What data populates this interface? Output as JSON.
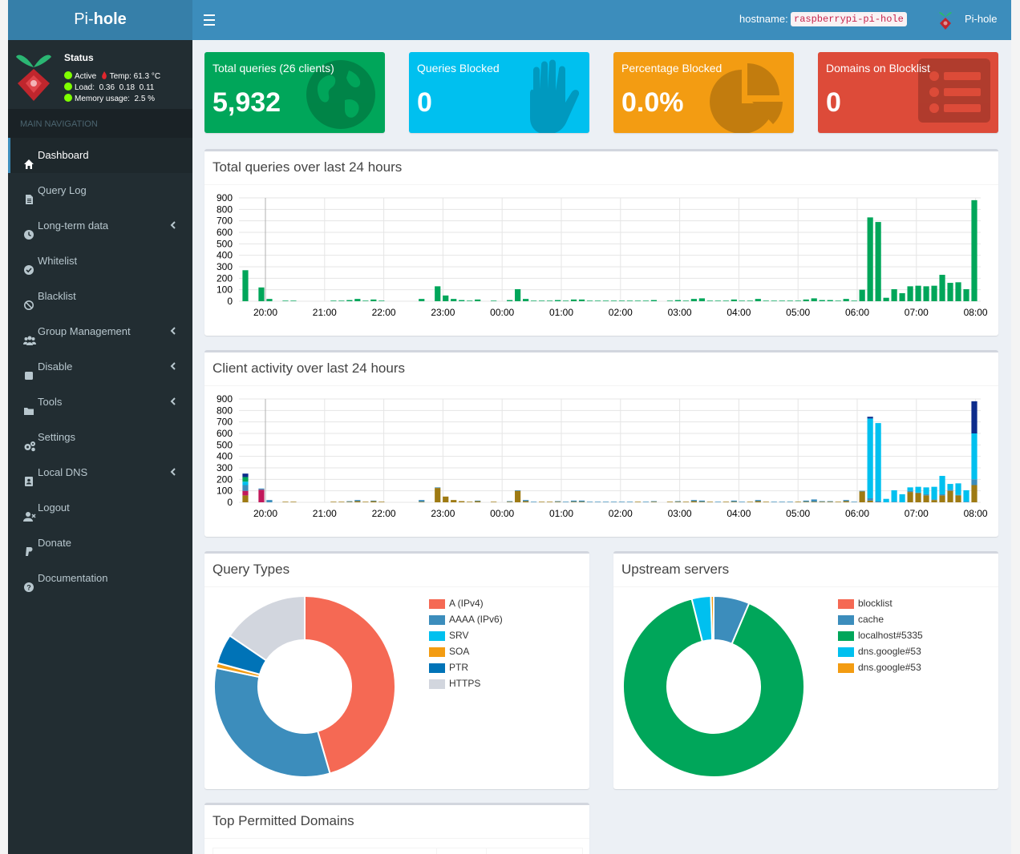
{
  "app": {
    "brand_light": "Pi-",
    "brand_bold": "hole",
    "menu_icon": "hamburger-icon"
  },
  "topbar": {
    "hostname_label": "hostname:",
    "hostname": "raspberrypi-pi-hole",
    "user": "Pi-hole"
  },
  "status": {
    "title": "Status",
    "active": "Active",
    "temp": "Temp: 61.3 °C",
    "load": "Load:  0.36  0.18  0.11",
    "memory": "Memory usage:  2.5 %"
  },
  "nav": {
    "header": "MAIN NAVIGATION",
    "items": [
      {
        "label": "Dashboard",
        "icon": "home-icon",
        "active": true,
        "chevron": false
      },
      {
        "label": "Query Log",
        "icon": "file-icon",
        "active": false,
        "chevron": false
      },
      {
        "label": "Long-term data",
        "icon": "clock-icon",
        "active": false,
        "chevron": true
      },
      {
        "label": "Whitelist",
        "icon": "check-circle-icon",
        "active": false,
        "chevron": false
      },
      {
        "label": "Blacklist",
        "icon": "ban-icon",
        "active": false,
        "chevron": false
      },
      {
        "label": "Group Management",
        "icon": "users-icon",
        "active": false,
        "chevron": true
      },
      {
        "label": "Disable",
        "icon": "stop-icon",
        "active": false,
        "chevron": true
      },
      {
        "label": "Tools",
        "icon": "folder-icon",
        "active": false,
        "chevron": true
      },
      {
        "label": "Settings",
        "icon": "gears-icon",
        "active": false,
        "chevron": false
      },
      {
        "label": "Local DNS",
        "icon": "address-book-icon",
        "active": false,
        "chevron": true
      },
      {
        "label": "Logout",
        "icon": "user-logout-icon",
        "active": false,
        "chevron": false
      },
      {
        "label": "Donate",
        "icon": "paypal-icon",
        "active": false,
        "chevron": false
      },
      {
        "label": "Documentation",
        "icon": "question-circle-icon",
        "active": false,
        "chevron": false
      }
    ]
  },
  "stats": [
    {
      "title": "Total queries (26 clients)",
      "value": "5,932",
      "color": "#00a65a",
      "icon": "globe-icon"
    },
    {
      "title": "Queries Blocked",
      "value": "0",
      "color": "#00c0ef",
      "icon": "hand-icon"
    },
    {
      "title": "Percentage Blocked",
      "value": "0.0%",
      "color": "#f39c12",
      "icon": "pie-chart-icon"
    },
    {
      "title": "Domains on Blocklist",
      "value": "0",
      "color": "#dd4b39",
      "icon": "list-icon"
    }
  ],
  "panels": {
    "queries_title": "Total queries over last 24 hours",
    "clients_title": "Client activity over last 24 hours",
    "types_title": "Query Types",
    "upstream_title": "Upstream servers",
    "top_permitted_title": "Top Permitted Domains"
  },
  "chart_data": [
    {
      "type": "bar",
      "title": "Total queries over last 24 hours",
      "ylim": [
        0,
        900
      ],
      "yticks": [
        "0",
        "100",
        "200",
        "300",
        "400",
        "500",
        "600",
        "700",
        "800",
        "900"
      ],
      "xticks": [
        "20:00",
        "21:00",
        "22:00",
        "23:00",
        "00:00",
        "01:00",
        "02:00",
        "03:00",
        "04:00",
        "05:00",
        "06:00",
        "07:00",
        "08:00"
      ],
      "grid": true,
      "series": [
        {
          "color": "#00a65a",
          "values": [
            270,
            0,
            120,
            20,
            0,
            5,
            5,
            0,
            0,
            0,
            0,
            5,
            5,
            10,
            20,
            5,
            15,
            5,
            0,
            0,
            0,
            0,
            20,
            0,
            130,
            50,
            20,
            10,
            5,
            15,
            0,
            5,
            0,
            10,
            105,
            20,
            5,
            5,
            5,
            10,
            5,
            15,
            15,
            5,
            5,
            5,
            5,
            5,
            5,
            5,
            5,
            10,
            0,
            5,
            10,
            5,
            20,
            25,
            5,
            5,
            5,
            15,
            5,
            5,
            20,
            5,
            5,
            5,
            5,
            5,
            15,
            25,
            10,
            10,
            5,
            20,
            5,
            100,
            730,
            690,
            30,
            105,
            70,
            130,
            135,
            130,
            135,
            230,
            160,
            165,
            105,
            880
          ]
        }
      ]
    },
    {
      "type": "bar",
      "title": "Client activity over last 24 hours",
      "ylim": [
        0,
        900
      ],
      "yticks": [
        "0",
        "100",
        "200",
        "300",
        "400",
        "500",
        "600",
        "700",
        "800",
        "900"
      ],
      "xticks": [
        "20:00",
        "21:00",
        "22:00",
        "23:00",
        "00:00",
        "01:00",
        "02:00",
        "03:00",
        "04:00",
        "05:00",
        "06:00",
        "07:00",
        "08:00"
      ],
      "grid": true,
      "stacked": true,
      "series": [
        {
          "color": "#9e7a13",
          "values": [
            60,
            0,
            0,
            0,
            0,
            5,
            5,
            0,
            0,
            0,
            0,
            5,
            5,
            5,
            10,
            5,
            10,
            5,
            0,
            0,
            0,
            0,
            5,
            0,
            125,
            50,
            20,
            10,
            5,
            10,
            0,
            5,
            0,
            5,
            100,
            10,
            0,
            5,
            5,
            5,
            0,
            5,
            5,
            0,
            0,
            0,
            0,
            0,
            0,
            5,
            0,
            5,
            0,
            5,
            5,
            5,
            10,
            5,
            5,
            0,
            5,
            5,
            0,
            5,
            10,
            5,
            0,
            0,
            0,
            5,
            5,
            5,
            5,
            5,
            5,
            10,
            0,
            95,
            15,
            0,
            0,
            0,
            0,
            90,
            80,
            60,
            20,
            60,
            100,
            60,
            0,
            150
          ]
        },
        {
          "color": "#c2185b",
          "values": [
            40,
            0,
            110,
            0,
            0,
            0,
            0,
            0,
            0,
            0,
            0,
            0,
            0,
            0,
            0,
            0,
            0,
            0,
            0,
            0,
            0,
            0,
            0,
            0,
            0,
            0,
            0,
            0,
            0,
            0,
            0,
            0,
            0,
            0,
            0,
            0,
            0,
            0,
            0,
            0,
            0,
            0,
            0,
            0,
            0,
            0,
            0,
            0,
            0,
            0,
            0,
            0,
            0,
            0,
            0,
            0,
            0,
            0,
            0,
            0,
            0,
            0,
            0,
            0,
            0,
            0,
            0,
            0,
            0,
            0,
            0,
            0,
            0,
            0,
            0,
            0,
            0,
            0,
            0,
            0,
            0,
            0,
            0,
            0,
            0,
            0,
            0,
            0,
            0,
            0,
            0,
            0
          ]
        },
        {
          "color": "#3c8dbc",
          "values": [
            50,
            0,
            10,
            20,
            0,
            0,
            0,
            0,
            0,
            0,
            0,
            0,
            0,
            5,
            10,
            0,
            5,
            0,
            0,
            0,
            0,
            0,
            15,
            0,
            5,
            0,
            0,
            0,
            0,
            5,
            0,
            0,
            0,
            5,
            5,
            10,
            5,
            0,
            0,
            5,
            5,
            10,
            10,
            5,
            5,
            5,
            5,
            5,
            5,
            0,
            5,
            5,
            0,
            0,
            5,
            0,
            10,
            10,
            0,
            5,
            0,
            10,
            5,
            0,
            10,
            0,
            5,
            5,
            5,
            0,
            10,
            20,
            5,
            5,
            0,
            10,
            5,
            5,
            20,
            10,
            0,
            5,
            0,
            10,
            5,
            10,
            5,
            10,
            10,
            5,
            5,
            50
          ]
        },
        {
          "color": "#00c0ef",
          "values": [
            30,
            0,
            0,
            0,
            0,
            0,
            0,
            0,
            0,
            0,
            0,
            0,
            0,
            0,
            0,
            0,
            0,
            0,
            0,
            0,
            0,
            0,
            0,
            0,
            0,
            0,
            0,
            0,
            0,
            0,
            0,
            0,
            0,
            0,
            0,
            0,
            0,
            0,
            0,
            0,
            0,
            0,
            0,
            0,
            0,
            0,
            0,
            0,
            0,
            0,
            0,
            0,
            0,
            0,
            0,
            0,
            0,
            0,
            0,
            0,
            0,
            0,
            0,
            0,
            0,
            0,
            0,
            0,
            0,
            0,
            0,
            0,
            0,
            0,
            0,
            0,
            0,
            0,
            695,
            680,
            30,
            100,
            70,
            30,
            50,
            60,
            110,
            160,
            50,
            100,
            100,
            400
          ]
        },
        {
          "color": "#00a65a",
          "values": [
            40,
            0,
            0,
            0,
            0,
            0,
            0,
            0,
            0,
            0,
            0,
            0,
            0,
            0,
            0,
            0,
            0,
            0,
            0,
            0,
            0,
            0,
            0,
            0,
            0,
            0,
            0,
            0,
            0,
            0,
            0,
            0,
            0,
            0,
            0,
            0,
            0,
            0,
            0,
            0,
            0,
            0,
            0,
            0,
            0,
            0,
            0,
            0,
            0,
            0,
            0,
            0,
            0,
            0,
            0,
            0,
            0,
            0,
            0,
            0,
            0,
            0,
            0,
            0,
            0,
            0,
            0,
            0,
            0,
            0,
            0,
            0,
            0,
            0,
            0,
            0,
            0,
            0,
            0,
            0,
            0,
            0,
            0,
            0,
            0,
            0,
            0,
            0,
            0,
            0,
            0,
            0
          ]
        },
        {
          "color": "#0d2c8c",
          "values": [
            30,
            0,
            0,
            0,
            0,
            0,
            0,
            0,
            0,
            0,
            0,
            0,
            0,
            0,
            0,
            0,
            0,
            0,
            0,
            0,
            0,
            0,
            0,
            0,
            0,
            0,
            0,
            0,
            0,
            0,
            0,
            0,
            0,
            0,
            0,
            0,
            0,
            0,
            0,
            0,
            0,
            0,
            0,
            0,
            0,
            0,
            0,
            0,
            0,
            0,
            0,
            0,
            0,
            0,
            0,
            0,
            0,
            0,
            0,
            0,
            0,
            0,
            0,
            0,
            0,
            0,
            0,
            0,
            0,
            0,
            0,
            0,
            0,
            0,
            0,
            0,
            0,
            0,
            15,
            0,
            0,
            0,
            0,
            0,
            0,
            0,
            0,
            0,
            0,
            0,
            0,
            280
          ]
        }
      ]
    },
    {
      "type": "pie",
      "title": "Query Types",
      "legend_position": "right",
      "slices": [
        {
          "label": "A (IPv4)",
          "value": 45.5,
          "color": "#f56954"
        },
        {
          "label": "AAAA (IPv6)",
          "value": 32.8,
          "color": "#3c8dbc"
        },
        {
          "label": "SRV",
          "value": 0.0,
          "color": "#00c0ef"
        },
        {
          "label": "SOA",
          "value": 0.9,
          "color": "#f39c12"
        },
        {
          "label": "PTR",
          "value": 5.3,
          "color": "#0073b7"
        },
        {
          "label": "HTTPS",
          "value": 15.5,
          "color": "#d2d6de"
        }
      ]
    },
    {
      "type": "pie",
      "title": "Upstream servers",
      "legend_position": "right",
      "slices": [
        {
          "label": "blocklist",
          "value": 0.0,
          "color": "#f56954"
        },
        {
          "label": "cache",
          "value": 6.4,
          "color": "#3c8dbc"
        },
        {
          "label": "localhost#5335",
          "value": 89.7,
          "color": "#00a65a"
        },
        {
          "label": "dns.google#53",
          "value": 3.4,
          "color": "#00c0ef"
        },
        {
          "label": "dns.google#53",
          "value": 0.5,
          "color": "#f39c12"
        }
      ]
    }
  ]
}
